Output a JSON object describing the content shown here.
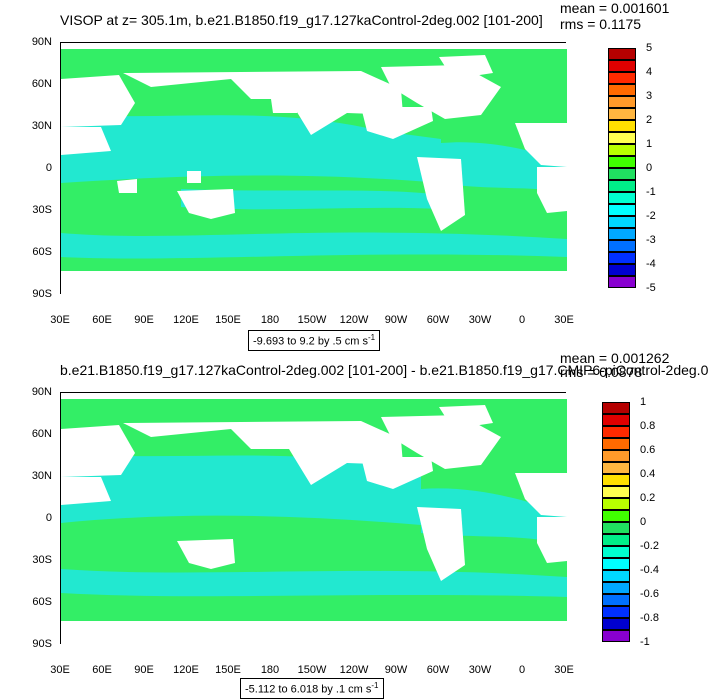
{
  "chart_data": [
    {
      "type": "heatmap",
      "title": "VISOP at z= 305.1m, b.e21.B1850.f19_g17.127kaControl-2deg.002 [101-200]",
      "stats": {
        "mean": "mean = 0.001601",
        "rms": "rms = 0.1175"
      },
      "ylabels": [
        "90N",
        "60N",
        "30N",
        "0",
        "30S",
        "60S",
        "90S"
      ],
      "xlabels": [
        "30E",
        "60E",
        "90E",
        "120E",
        "150E",
        "180",
        "150W",
        "120W",
        "90W",
        "60W",
        "30W",
        "0",
        "30E"
      ],
      "range_label": "-9.693 to 9.2 by .5 cm s",
      "range_exp": "-1",
      "colorbar": {
        "labels": [
          "5",
          "4",
          "3",
          "2",
          "1",
          "0",
          "-1",
          "-2",
          "-3",
          "-4",
          "-5"
        ],
        "colors": [
          "#b50000",
          "#e00000",
          "#ff2a00",
          "#ff6a00",
          "#ff9a2a",
          "#ffb640",
          "#ffe000",
          "#ffff50",
          "#b8ff00",
          "#40ff00",
          "#20e060",
          "#00ee88",
          "#00ffd0",
          "#00ffff",
          "#00d8ff",
          "#00a8ff",
          "#0070ff",
          "#0030ff",
          "#0000d0",
          "#8800d0",
          "#cc00cc",
          "#aaaaaa",
          "#777777"
        ]
      },
      "field_colors": {
        "base": "#33ee66",
        "dominant_pos": "#22e05a",
        "dominant_neg": "#22e8d0",
        "land": "#ffffff"
      }
    },
    {
      "type": "heatmap",
      "title": "b.e21.B1850.f19_g17.127kaControl-2deg.002 [101-200] - b.e21.B1850.f19_g17.CMIP6-piControl-2deg.0",
      "stats": {
        "mean": "mean = 0.001262",
        "rms": "rms = 0.0878"
      },
      "ylabels": [
        "90N",
        "60N",
        "30N",
        "0",
        "30S",
        "60S",
        "90S"
      ],
      "xlabels": [
        "30E",
        "60E",
        "90E",
        "120E",
        "150E",
        "180",
        "150W",
        "120W",
        "90W",
        "60W",
        "30W",
        "0",
        "30E"
      ],
      "range_label": "-5.112 to 6.018 by .1 cm s",
      "range_exp": "-1",
      "colorbar": {
        "labels": [
          "1",
          "0.8",
          "0.6",
          "0.4",
          "0.2",
          "0",
          "-0.2",
          "-0.4",
          "-0.6",
          "-0.8",
          "-1"
        ],
        "colors": [
          "#b50000",
          "#e00000",
          "#ff2a00",
          "#ff6a00",
          "#ff9a2a",
          "#ffb640",
          "#ffe000",
          "#ffff50",
          "#b8ff00",
          "#40ff00",
          "#20e060",
          "#00ee88",
          "#00ffd0",
          "#00ffff",
          "#00d8ff",
          "#00a8ff",
          "#0070ff",
          "#0030ff",
          "#0000d0",
          "#8800d0",
          "#cc00cc",
          "#aaaaaa",
          "#777777"
        ]
      },
      "field_colors": {
        "base": "#33ee66",
        "dominant_pos": "#22e05a",
        "dominant_neg": "#22e8d0",
        "land": "#ffffff"
      }
    }
  ]
}
